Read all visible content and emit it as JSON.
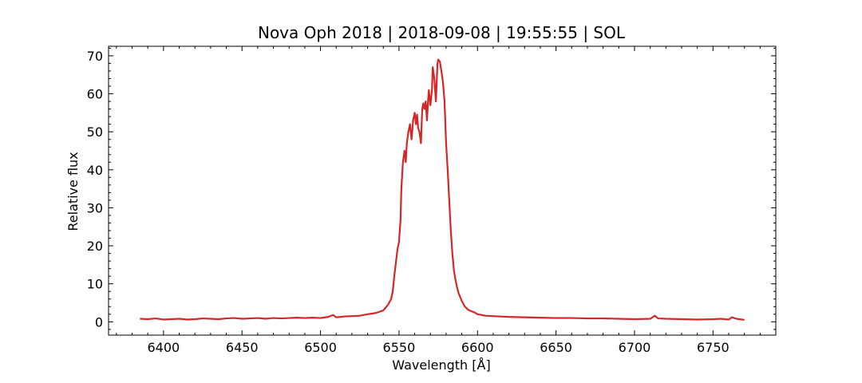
{
  "chart_data": {
    "type": "line",
    "title": "Nova Oph 2018 | 2018-09-08 | 19:55:55 | SOL",
    "xlabel": "Wavelength [Å]",
    "ylabel": "Relative flux",
    "xlim": [
      6365,
      6790
    ],
    "ylim": [
      -3.5,
      72.5
    ],
    "xticks": [
      6400,
      6450,
      6500,
      6550,
      6600,
      6650,
      6700,
      6750
    ],
    "yticks": [
      0,
      10,
      20,
      30,
      40,
      50,
      60,
      70
    ],
    "grid": false,
    "line_color": "#d62728",
    "series": [
      {
        "x": [
          6385,
          6390,
          6395,
          6400,
          6405,
          6410,
          6415,
          6420,
          6425,
          6430,
          6435,
          6440,
          6445,
          6450,
          6455,
          6460,
          6465,
          6470,
          6475,
          6480,
          6485,
          6490,
          6495,
          6500,
          6505,
          6508,
          6510,
          6515,
          6520,
          6525,
          6530,
          6535,
          6540,
          6543,
          6545,
          6546,
          6547,
          6548,
          6549,
          6550,
          6551,
          6551.5,
          6552.5,
          6553.5,
          6554.3,
          6555,
          6556,
          6557,
          6558,
          6559,
          6560,
          6560.8,
          6561.5,
          6562.2,
          6563,
          6564,
          6564.8,
          6565.5,
          6566.2,
          6567,
          6567.8,
          6568.5,
          6569,
          6570,
          6571,
          6571.5,
          6572.5,
          6573.5,
          6574.5,
          6575,
          6576,
          6577,
          6578,
          6579,
          6580,
          6581,
          6582,
          6583,
          6584,
          6585,
          6586,
          6587,
          6588,
          6589,
          6590,
          6592,
          6594,
          6596,
          6598,
          6600,
          6605,
          6610,
          6620,
          6630,
          6640,
          6650,
          6660,
          6670,
          6680,
          6690,
          6700,
          6710,
          6713,
          6715,
          6720,
          6730,
          6740,
          6750,
          6755,
          6760,
          6762,
          6765,
          6770
        ],
        "y": [
          0.8,
          0.7,
          0.9,
          0.6,
          0.7,
          0.8,
          0.6,
          0.7,
          0.9,
          0.8,
          0.7,
          0.9,
          1.0,
          0.8,
          0.9,
          1.0,
          0.8,
          1.0,
          0.9,
          1.0,
          1.1,
          1.0,
          1.1,
          1.0,
          1.3,
          1.8,
          1.2,
          1.4,
          1.5,
          1.6,
          2.0,
          2.3,
          3.0,
          4.5,
          6.0,
          8.0,
          12.0,
          15.5,
          19.0,
          21.0,
          27.0,
          35.0,
          42.0,
          45.0,
          42.0,
          47.0,
          50.0,
          52.0,
          48.0,
          53.0,
          55.0,
          52.0,
          54.5,
          51.0,
          50.0,
          47.0,
          56.0,
          57.5,
          56.0,
          58.0,
          53.0,
          58.0,
          61.0,
          57.0,
          61.0,
          67.0,
          64.0,
          58.0,
          68.0,
          69.0,
          68.5,
          66.0,
          63.0,
          58.0,
          47.0,
          40.0,
          32.0,
          24.0,
          18.0,
          13.5,
          11.0,
          9.0,
          7.5,
          6.5,
          5.5,
          4.0,
          3.2,
          2.8,
          2.5,
          2.0,
          1.6,
          1.5,
          1.3,
          1.2,
          1.1,
          1.0,
          1.0,
          0.9,
          0.9,
          0.8,
          0.7,
          0.8,
          1.6,
          0.9,
          0.8,
          0.7,
          0.6,
          0.7,
          0.8,
          0.6,
          1.2,
          0.8,
          0.5
        ]
      }
    ]
  }
}
